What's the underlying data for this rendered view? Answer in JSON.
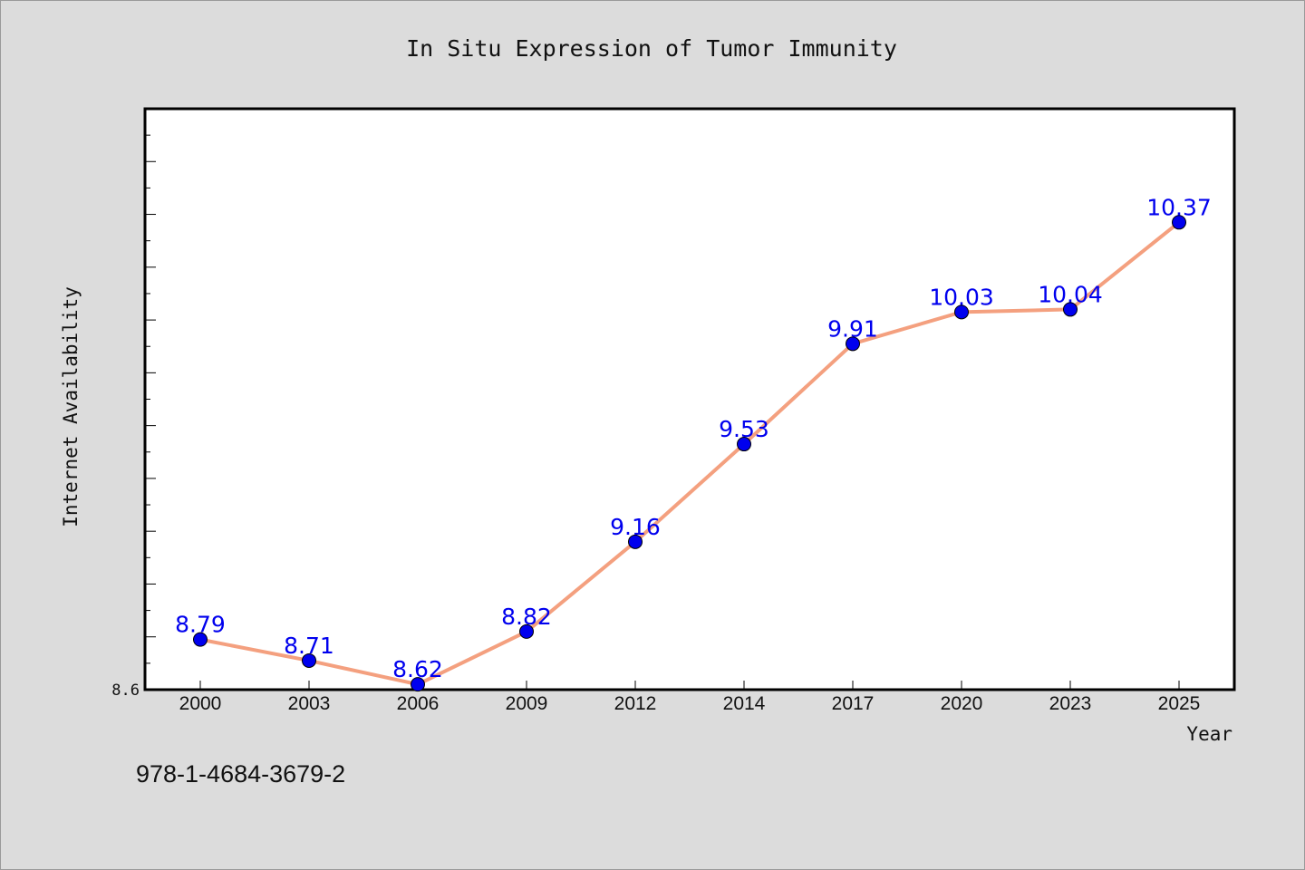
{
  "chart_data": {
    "type": "line",
    "title": "In Situ Expression of Tumor Immunity",
    "xlabel": "Year",
    "ylabel": "Internet Availability",
    "categories": [
      "2000",
      "2003",
      "2006",
      "2009",
      "2012",
      "2014",
      "2017",
      "2020",
      "2023",
      "2025"
    ],
    "series": [
      {
        "values": [
          8.79,
          8.71,
          8.62,
          8.82,
          9.16,
          9.53,
          9.91,
          10.03,
          10.04,
          10.37
        ]
      }
    ],
    "data_labels": [
      "8.79",
      "8.71",
      "8.62",
      "8.82",
      "9.16",
      "9.53",
      "9.91",
      "10.03",
      "10.04",
      "10.37"
    ],
    "ylim": [
      8.6,
      10.8
    ],
    "yticks": [
      "8.6"
    ],
    "grid": false,
    "line_color": "#f4a07f",
    "marker_color": "#0000ee"
  },
  "footnote": "978-1-4684-3679-2"
}
